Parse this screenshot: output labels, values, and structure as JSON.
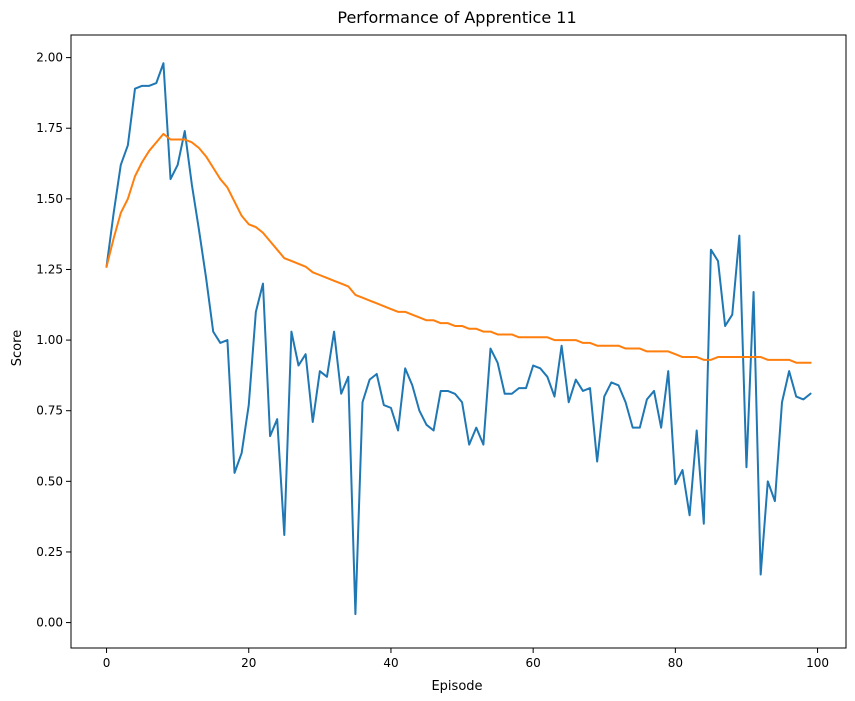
{
  "chart_data": {
    "type": "line",
    "title": "Performance of Apprentice 11",
    "xlabel": "Episode",
    "ylabel": "Score",
    "xlim": [
      -5,
      104
    ],
    "ylim": [
      -0.09,
      2.08
    ],
    "xticks": [
      0,
      20,
      40,
      60,
      80,
      100
    ],
    "yticks": [
      0.0,
      0.25,
      0.5,
      0.75,
      1.0,
      1.25,
      1.5,
      1.75,
      2.0
    ],
    "xtick_labels": [
      "0",
      "20",
      "40",
      "60",
      "80",
      "100"
    ],
    "ytick_labels": [
      "0.00",
      "0.25",
      "0.50",
      "0.75",
      "1.00",
      "1.25",
      "1.50",
      "1.75",
      "2.00"
    ],
    "grid": false,
    "series": [
      {
        "color": "#1f77b4",
        "values": [
          1.26,
          1.45,
          1.62,
          1.69,
          1.89,
          1.9,
          1.9,
          1.91,
          1.98,
          1.57,
          1.62,
          1.74,
          1.55,
          1.39,
          1.22,
          1.03,
          0.99,
          1.0,
          0.53,
          0.6,
          0.77,
          1.1,
          1.2,
          0.66,
          0.72,
          0.31,
          1.03,
          0.91,
          0.95,
          0.71,
          0.89,
          0.87,
          1.03,
          0.81,
          0.87,
          0.03,
          0.78,
          0.86,
          0.88,
          0.77,
          0.76,
          0.68,
          0.9,
          0.84,
          0.75,
          0.7,
          0.68,
          0.82,
          0.82,
          0.81,
          0.78,
          0.63,
          0.69,
          0.63,
          0.97,
          0.92,
          0.81,
          0.81,
          0.83,
          0.83,
          0.91,
          0.9,
          0.87,
          0.8,
          0.98,
          0.78,
          0.86,
          0.82,
          0.83,
          0.57,
          0.8,
          0.85,
          0.84,
          0.78,
          0.69,
          0.69,
          0.79,
          0.82,
          0.69,
          0.89,
          0.49,
          0.54,
          0.38,
          0.68,
          0.35,
          1.32,
          1.28,
          1.05,
          1.09,
          1.37,
          0.55,
          1.17,
          0.17,
          0.5,
          0.43,
          0.78,
          0.89,
          0.8,
          0.79,
          0.81
        ]
      },
      {
        "color": "#ff7f0e",
        "values": [
          1.26,
          1.36,
          1.45,
          1.5,
          1.58,
          1.63,
          1.67,
          1.7,
          1.73,
          1.71,
          1.71,
          1.71,
          1.7,
          1.68,
          1.65,
          1.61,
          1.57,
          1.54,
          1.49,
          1.44,
          1.41,
          1.4,
          1.38,
          1.35,
          1.32,
          1.29,
          1.28,
          1.27,
          1.26,
          1.24,
          1.23,
          1.22,
          1.21,
          1.2,
          1.19,
          1.16,
          1.15,
          1.14,
          1.13,
          1.12,
          1.11,
          1.1,
          1.1,
          1.09,
          1.08,
          1.07,
          1.07,
          1.06,
          1.06,
          1.05,
          1.05,
          1.04,
          1.04,
          1.03,
          1.03,
          1.02,
          1.02,
          1.02,
          1.01,
          1.01,
          1.01,
          1.01,
          1.01,
          1.0,
          1.0,
          1.0,
          1.0,
          0.99,
          0.99,
          0.98,
          0.98,
          0.98,
          0.98,
          0.97,
          0.97,
          0.97,
          0.96,
          0.96,
          0.96,
          0.96,
          0.95,
          0.94,
          0.94,
          0.94,
          0.93,
          0.93,
          0.94,
          0.94,
          0.94,
          0.94,
          0.94,
          0.94,
          0.94,
          0.93,
          0.93,
          0.93,
          0.93,
          0.92,
          0.92,
          0.92
        ]
      }
    ]
  }
}
